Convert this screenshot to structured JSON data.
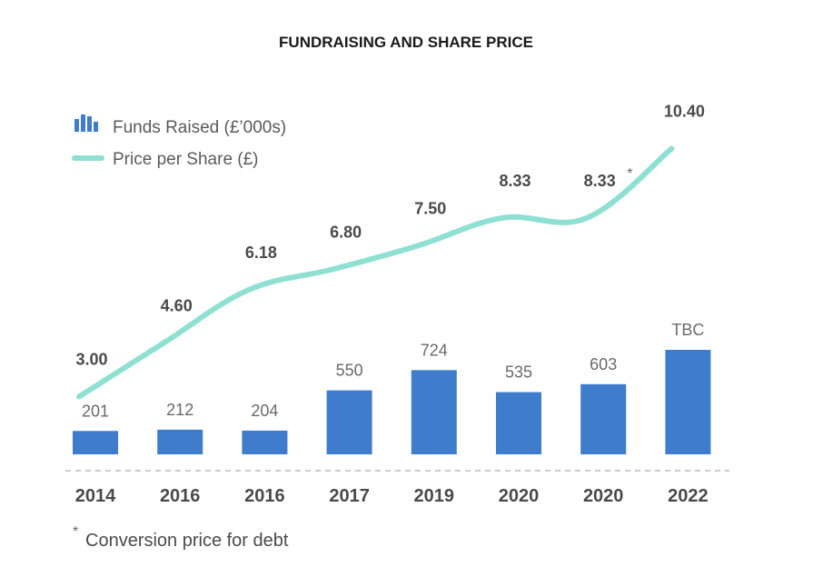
{
  "chart_data": {
    "type": "bar",
    "title": "FUNDRAISING AND SHARE PRICE",
    "categories": [
      "2014",
      "2016",
      "2016",
      "2017",
      "2019",
      "2020",
      "2020",
      "2022"
    ],
    "series": [
      {
        "name": "Funds Raised (£’000s)",
        "type": "bar",
        "values": [
          201,
          212,
          204,
          550,
          724,
          535,
          603,
          null
        ],
        "labels": [
          "201",
          "212",
          "204",
          "550",
          "724",
          "535",
          "603",
          "TBC"
        ],
        "color": "#3f7ccc"
      },
      {
        "name": "Price per Share (£)",
        "type": "line",
        "values": [
          3.0,
          4.6,
          6.18,
          6.8,
          7.5,
          8.33,
          8.33,
          10.4
        ],
        "labels": [
          "3.00",
          "4.60",
          "6.18",
          "6.80",
          "7.50",
          "8.33",
          "8.33",
          "10.40"
        ],
        "color": "#8ee0d2"
      }
    ],
    "annotation": {
      "index": 6,
      "marker": "*",
      "text": "Conversion price for debt"
    },
    "legend_placement": "top-left",
    "grid": false,
    "baseline_style": "dashed",
    "baseline_color": "#cccccc"
  }
}
